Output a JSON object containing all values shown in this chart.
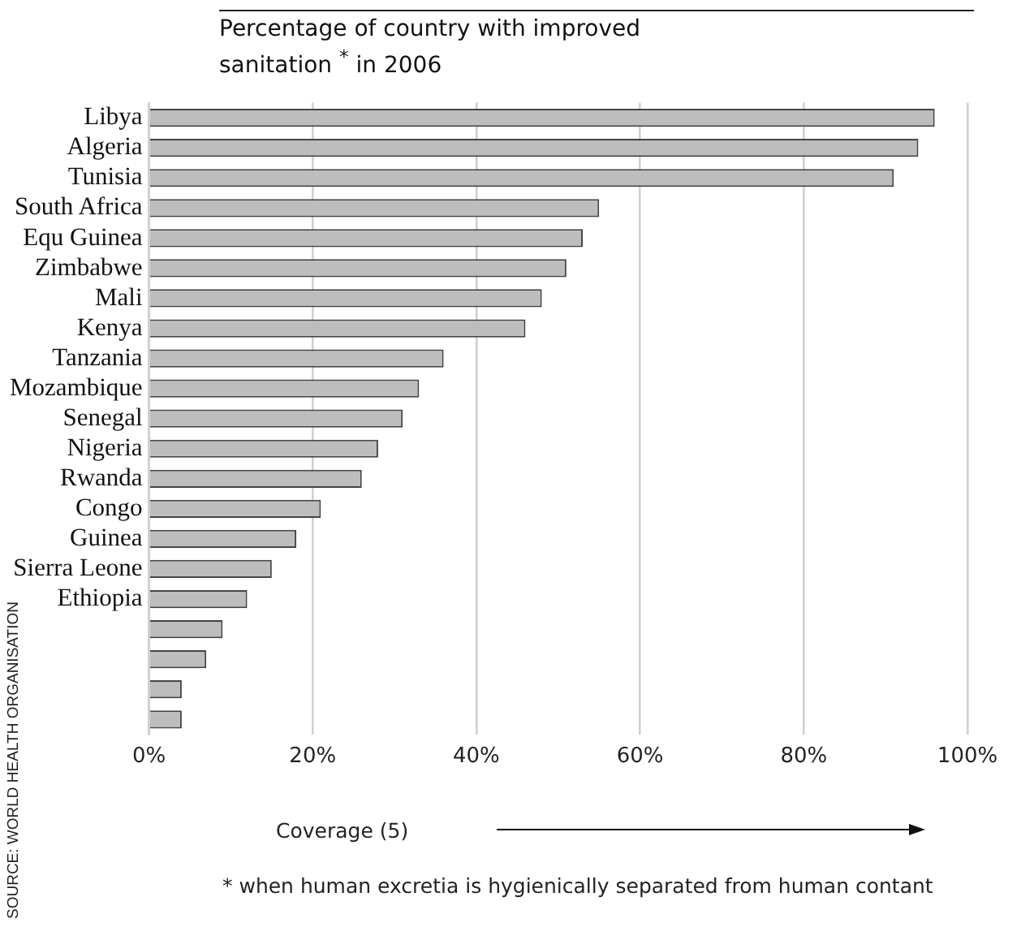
{
  "chart_data": {
    "type": "bar",
    "orientation": "horizontal",
    "title": "Percentage of country with improved sanitation $^{*}$ in 2006",
    "xlabel": "Coverage (5)",
    "categories": [
      "Libya",
      "Algeria",
      "Tunisia",
      "South Africa",
      "Equ Guinea",
      "Zimbabwe",
      "Mali",
      "Kenya",
      "Tanzania",
      "Mozambique",
      "Senegal",
      "Nigeria",
      "Rwanda",
      "Congo",
      "Guinea",
      "Sierra Leone",
      "Ethiopia",
      null,
      null,
      null,
      null
    ],
    "values": [
      96,
      94,
      91,
      55,
      53,
      51,
      48,
      46,
      36,
      33,
      31,
      28,
      26,
      21,
      18,
      15,
      12,
      9,
      7,
      4,
      4
    ],
    "color": "#bdbdbd",
    "xlim": [
      0,
      100
    ],
    "xticks": [
      {
        "value": 0,
        "label": "0%"
      },
      {
        "value": 20,
        "label": "20%"
      },
      {
        "value": 40,
        "label": "40%"
      },
      {
        "value": 60,
        "label": "60%"
      },
      {
        "value": 80,
        "label": "80%"
      },
      {
        "value": 100,
        "label": "100%"
      }
    ],
    "grid": "x",
    "legend": false,
    "annotations": [
      "* when human excretia is hygienically separated from human contant",
      "SOURCE: WORLD HEALTH ORGANISATION"
    ]
  }
}
